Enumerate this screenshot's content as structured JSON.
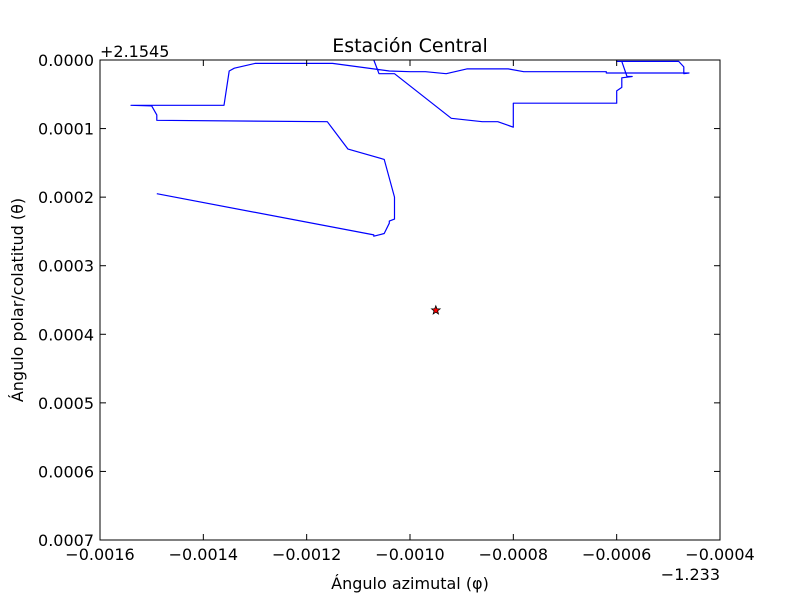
{
  "chart_data": {
    "type": "line",
    "title": "Estación Central",
    "xlabel": "Ángulo azimutal (φ)",
    "ylabel": "Ángulo polar/colatitud (θ)",
    "x_offset_label": "−1.233",
    "y_offset_label": "+2.1545",
    "xlim": [
      -0.0016,
      -0.0004
    ],
    "ylim": [
      0.0007,
      0.0
    ],
    "y_inverted": true,
    "x_ticks": [
      -0.0016,
      -0.0014,
      -0.0012,
      -0.001,
      -0.0008,
      -0.0006,
      -0.0004
    ],
    "x_tick_labels": [
      "−0.0016",
      "−0.0014",
      "−0.0012",
      "−0.0010",
      "−0.0008",
      "−0.0006",
      "−0.0004"
    ],
    "y_ticks": [
      0.0,
      0.0001,
      0.0002,
      0.0003,
      0.0004,
      0.0005,
      0.0006,
      0.0007
    ],
    "y_tick_labels": [
      "0.0000",
      "0.0001",
      "0.0002",
      "0.0003",
      "0.0004",
      "0.0005",
      "0.0006",
      "0.0007"
    ],
    "grid": false,
    "series": [
      {
        "type": "line",
        "color": "#0000ff",
        "x": [
          -0.00149,
          -0.00107,
          -0.00107,
          -0.00105,
          -0.00104,
          -0.00104,
          -0.00103,
          -0.00103,
          -0.00105,
          -0.00112,
          -0.00116,
          -0.00149,
          -0.00149,
          -0.0015,
          -0.00154,
          -0.00136,
          -0.00135,
          -0.00134,
          -0.0013,
          -0.00126,
          -0.0012,
          -0.00115,
          -0.00104,
          -0.001,
          -0.00097,
          -0.00093,
          -0.00089,
          -0.00081,
          -0.00078,
          -0.0007,
          -0.00062,
          -0.00062,
          -0.00046,
          -0.00046,
          -0.00046,
          -0.00047,
          -0.00047,
          -0.00047,
          -0.00048,
          -0.0006,
          -0.00059,
          -0.00058,
          -0.00057,
          -0.00059,
          -0.00059,
          -0.00059,
          -0.0006,
          -0.0006,
          -0.0008,
          -0.0008,
          -0.0008,
          -0.00083,
          -0.00083,
          -0.00086,
          -0.00092,
          -0.00103,
          -0.00106,
          -0.00107
        ],
        "y": [
          0.000195,
          0.000255,
          0.000257,
          0.000253,
          0.000238,
          0.000235,
          0.000232,
          0.0002,
          0.000145,
          0.00013,
          9e-05,
          8.8e-05,
          8e-05,
          6.7e-05,
          6.6e-05,
          6.6e-05,
          1.6e-05,
          1.2e-05,
          5e-06,
          5e-06,
          5e-06,
          5e-06,
          1.6e-05,
          1.7e-05,
          1.7e-05,
          2e-05,
          1.3e-05,
          1.3e-05,
          1.7e-05,
          1.7e-05,
          1.7e-05,
          1.9e-05,
          1.9e-05,
          1.9e-05,
          1.9e-05,
          2e-05,
          1e-05,
          1e-05,
          2e-06,
          2e-06,
          2e-06,
          2.4e-05,
          2.4e-05,
          2.6e-05,
          3.8e-05,
          4e-05,
          4.5e-05,
          6.3e-05,
          6.3e-05,
          8.2e-05,
          9.8e-05,
          9e-05,
          9e-05,
          9e-05,
          8.5e-05,
          2e-05,
          2e-05,
          0.0
        ]
      },
      {
        "type": "scatter",
        "marker": "star",
        "color": "#ff0000",
        "edgecolor": "#000000",
        "x": [
          -0.00095
        ],
        "y": [
          0.000365
        ]
      }
    ]
  }
}
